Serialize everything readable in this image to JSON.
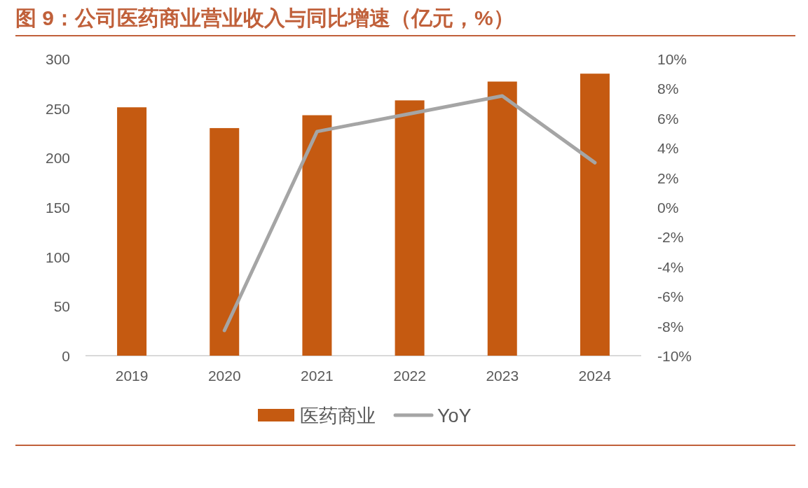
{
  "chart_data": {
    "type": "bar",
    "title": "图 9：公司医药商业营业收入与同比增速（亿元，%）",
    "categories": [
      "2019",
      "2020",
      "2021",
      "2022",
      "2023",
      "2024"
    ],
    "series": [
      {
        "name": "医药商业",
        "color": "#c55a11",
        "values": [
          251,
          230,
          243,
          258,
          277,
          285
        ]
      },
      {
        "name": "YoY",
        "type": "line",
        "axis": "y2",
        "color": "#a5a5a5",
        "values": [
          null,
          -8.3,
          5.1,
          6.3,
          7.5,
          3.0
        ]
      }
    ],
    "ylim": [
      0,
      300
    ],
    "yticks": [
      0,
      50,
      100,
      150,
      200,
      250,
      300
    ],
    "y2lim": [
      -10,
      10
    ],
    "y2ticks": [
      {
        "value": -10,
        "label": "-10%"
      },
      {
        "value": -8,
        "label": "-8%"
      },
      {
        "value": -6,
        "label": "-6%"
      },
      {
        "value": -4,
        "label": "-4%"
      },
      {
        "value": -2,
        "label": "-2%"
      },
      {
        "value": 0,
        "label": "0%"
      },
      {
        "value": 2,
        "label": "2%"
      },
      {
        "value": 4,
        "label": "4%"
      },
      {
        "value": 6,
        "label": "6%"
      },
      {
        "value": 8,
        "label": "8%"
      },
      {
        "value": 10,
        "label": "10%"
      }
    ],
    "legend": "bottom",
    "grid": false
  }
}
